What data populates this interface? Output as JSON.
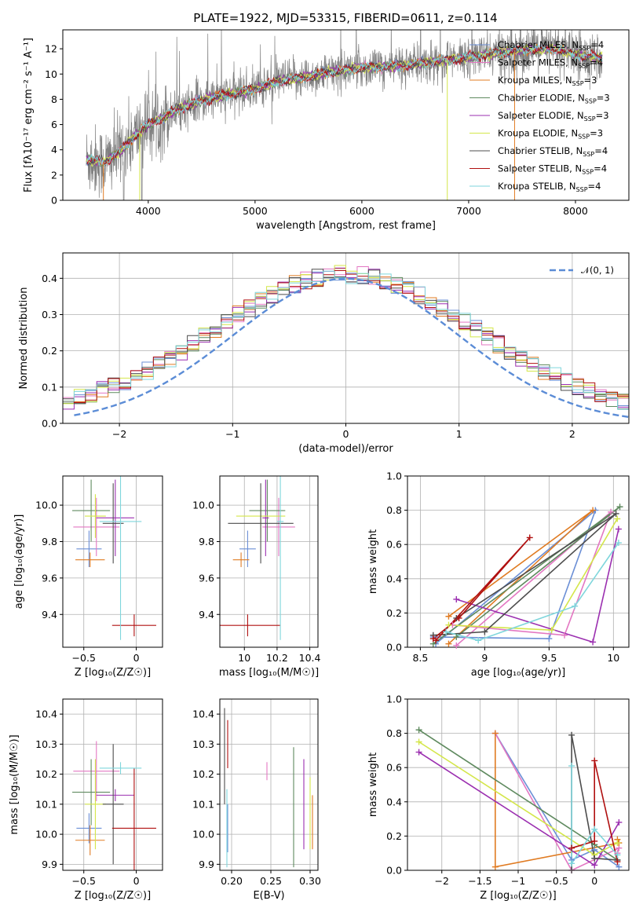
{
  "figure": {
    "title": "PLATE=1922, MJD=53315, FIBERID=0611, z=0.114"
  },
  "models": [
    {
      "name": "Chabrier MILES",
      "nssp": "4",
      "color": "#6b8fd6"
    },
    {
      "name": "Salpeter MILES",
      "nssp": "4",
      "color": "#e377c2"
    },
    {
      "name": "Kroupa MILES",
      "nssp": "3",
      "color": "#e07b22"
    },
    {
      "name": "Chabrier ELODIE",
      "nssp": "3",
      "color": "#5f8a5f"
    },
    {
      "name": "Salpeter ELODIE",
      "nssp": "3",
      "color": "#9b2fb0"
    },
    {
      "name": "Kroupa ELODIE",
      "nssp": "3",
      "color": "#d4e64a"
    },
    {
      "name": "Chabrier STELIB",
      "nssp": "4",
      "color": "#4d4d4d"
    },
    {
      "name": "Salpeter STELIB",
      "nssp": "4",
      "color": "#b01010"
    },
    {
      "name": "Kroupa STELIB",
      "nssp": "4",
      "color": "#7fd6dc"
    }
  ],
  "chart_data": [
    {
      "id": "spectrum",
      "type": "line",
      "xlabel": "wavelength [Angstrom, rest frame]",
      "ylabel": "Flux [fλ10⁻¹⁷ erg cm⁻² s⁻¹ A⁻¹]",
      "xlim": [
        3200,
        8500
      ],
      "ylim": [
        0,
        13.5
      ],
      "xticks": [
        4000,
        5000,
        6000,
        7000,
        8000
      ],
      "yticks": [
        0,
        2,
        4,
        6,
        8,
        10,
        12
      ],
      "grid": false,
      "legend_position": "right",
      "data_series": {
        "name": "data",
        "color": "#808080",
        "x_range": [
          3420,
          8250
        ]
      },
      "model_continuum": {
        "x": [
          3420,
          3600,
          3750,
          3900,
          4000,
          4100,
          4300,
          4500,
          4800,
          5000,
          5200,
          5500,
          5800,
          6000,
          6300,
          6600,
          6900,
          7200,
          7500,
          7800,
          8000,
          8250
        ],
        "y": [
          3.2,
          3.0,
          4.0,
          5.3,
          6.0,
          6.4,
          7.3,
          7.9,
          8.5,
          8.8,
          9.4,
          9.8,
          10.3,
          10.5,
          10.6,
          10.9,
          11.2,
          11.6,
          11.9,
          12.0,
          11.5,
          11.3
        ]
      }
    },
    {
      "id": "residuals",
      "type": "histogram",
      "xlabel": "(data-model)/error",
      "ylabel": "Normed distribution",
      "xlim": [
        -2.5,
        2.5
      ],
      "ylim": [
        0,
        0.47
      ],
      "xticks": [
        -2,
        -1,
        0,
        1,
        2
      ],
      "yticks": [
        0.0,
        0.1,
        0.2,
        0.3,
        0.4
      ],
      "grid": true,
      "legend": [
        "𝒩(0, 1)"
      ],
      "legend_position": "top-right",
      "bin_edges_range": [
        -2.5,
        2.5
      ],
      "n_bins": 50,
      "reference_curve": {
        "name": "𝒩(0, 1)",
        "color": "#5b8cd6",
        "style": "dashed",
        "mean": 0,
        "sigma": 1
      }
    },
    {
      "id": "age_vs_Z",
      "type": "errorbar",
      "xlabel": "Z [log₁₀(Z/Z☉)]",
      "ylabel": "age  [log₁₀(age/yr)]",
      "xlim": [
        -0.7,
        0.25
      ],
      "ylim": [
        9.22,
        10.16
      ],
      "xticks": [
        -0.5,
        0.0
      ],
      "yticks": [
        9.4,
        9.6,
        9.8,
        10.0
      ],
      "grid": true,
      "points": [
        {
          "x": -0.45,
          "xerr": 0.12,
          "y": 9.76,
          "yerr": 0.1
        },
        {
          "x": -0.38,
          "xerr": 0.22,
          "y": 9.88,
          "yerr": 0.16
        },
        {
          "x": -0.44,
          "xerr": 0.14,
          "y": 9.7,
          "yerr": 0.04
        },
        {
          "x": -0.43,
          "xerr": 0.18,
          "y": 9.97,
          "yerr": 0.17
        },
        {
          "x": -0.2,
          "xerr": 0.18,
          "y": 9.93,
          "yerr": 0.21
        },
        {
          "x": -0.39,
          "xerr": 0.1,
          "y": 9.94,
          "yerr": 0.12
        },
        {
          "x": -0.22,
          "xerr": 0.1,
          "y": 9.9,
          "yerr": 0.22
        },
        {
          "x": -0.02,
          "xerr": 0.21,
          "y": 9.34,
          "yerr": 0.06
        },
        {
          "x": -0.15,
          "xerr": 0.2,
          "y": 9.91,
          "yerr": 0.65
        }
      ]
    },
    {
      "id": "age_vs_mass",
      "type": "errorbar",
      "xlabel": "mass [log₁₀(M/M☉)]",
      "ylabel": "",
      "xlim": [
        9.85,
        10.45
      ],
      "ylim": [
        9.22,
        10.16
      ],
      "xticks": [
        10.0,
        10.2,
        10.4
      ],
      "yticks": [
        9.4,
        9.6,
        9.8,
        10.0
      ],
      "grid": true,
      "points": [
        {
          "x": 10.02,
          "xerr": 0.05,
          "y": 9.76,
          "yerr": 0.1
        },
        {
          "x": 10.21,
          "xerr": 0.1,
          "y": 9.88,
          "yerr": 0.16
        },
        {
          "x": 9.98,
          "xerr": 0.05,
          "y": 9.7,
          "yerr": 0.04
        },
        {
          "x": 10.14,
          "xerr": 0.11,
          "y": 9.97,
          "yerr": 0.17
        },
        {
          "x": 10.13,
          "xerr": 0.02,
          "y": 9.93,
          "yerr": 0.21
        },
        {
          "x": 10.1,
          "xerr": 0.15,
          "y": 9.94,
          "yerr": 0.12
        },
        {
          "x": 10.1,
          "xerr": 0.2,
          "y": 9.9,
          "yerr": 0.22
        },
        {
          "x": 10.02,
          "xerr": 0.2,
          "y": 9.34,
          "yerr": 0.06
        },
        {
          "x": 10.22,
          "xerr": 0.02,
          "y": 9.91,
          "yerr": 0.65
        }
      ]
    },
    {
      "id": "mass_weight_vs_age",
      "type": "line",
      "xlabel": "age  [log₁₀(age/yr)]",
      "ylabel": "mass weight",
      "xlim": [
        8.4,
        10.12
      ],
      "ylim": [
        0,
        1.0
      ],
      "xticks": [
        8.5,
        9.0,
        9.5,
        10.0
      ],
      "yticks": [
        0.0,
        0.2,
        0.4,
        0.6,
        0.8,
        1.0
      ],
      "grid": true,
      "series": [
        {
          "x": [
            8.6,
            9.5,
            9.86,
            8.62
          ],
          "y": [
            0.06,
            0.05,
            0.8,
            0.02
          ]
        },
        {
          "x": [
            8.75,
            9.62,
            9.98,
            8.78
          ],
          "y": [
            0.13,
            0.07,
            0.79,
            0.01
          ]
        },
        {
          "x": [
            8.72,
            9.84,
            8.72
          ],
          "y": [
            0.18,
            0.8,
            0.02
          ]
        },
        {
          "x": [
            8.6,
            10.05,
            8.78
          ],
          "y": [
            0.02,
            0.82,
            0.06
          ]
        },
        {
          "x": [
            8.78,
            9.84,
            10.04
          ],
          "y": [
            0.28,
            0.03,
            0.69
          ]
        },
        {
          "x": [
            8.72,
            9.52,
            10.03
          ],
          "y": [
            0.13,
            0.1,
            0.75
          ]
        },
        {
          "x": [
            8.6,
            9.0,
            10.02,
            8.78
          ],
          "y": [
            0.07,
            0.09,
            0.78,
            0.17
          ]
        },
        {
          "x": [
            8.6,
            8.8,
            9.35,
            8.62
          ],
          "y": [
            0.05,
            0.17,
            0.64,
            0.04
          ]
        },
        {
          "x": [
            8.7,
            8.95,
            9.7,
            10.04
          ],
          "y": [
            0.09,
            0.04,
            0.24,
            0.61
          ]
        }
      ]
    },
    {
      "id": "mass_vs_Z",
      "type": "errorbar",
      "xlabel": "Z [log₁₀(Z/Z☉)]",
      "ylabel": "mass [log₁₀(M/M☉)]",
      "xlim": [
        -0.7,
        0.25
      ],
      "ylim": [
        9.88,
        10.45
      ],
      "xticks": [
        -0.5,
        0.0
      ],
      "yticks": [
        9.9,
        10.0,
        10.1,
        10.2,
        10.3,
        10.4
      ],
      "grid": true,
      "points": [
        {
          "x": -0.45,
          "xerr": 0.12,
          "y": 10.02,
          "yerr": 0.05
        },
        {
          "x": -0.38,
          "xerr": 0.22,
          "y": 10.21,
          "yerr": 0.1
        },
        {
          "x": -0.44,
          "xerr": 0.14,
          "y": 9.98,
          "yerr": 0.05
        },
        {
          "x": -0.43,
          "xerr": 0.18,
          "y": 10.14,
          "yerr": 0.11
        },
        {
          "x": -0.2,
          "xerr": 0.18,
          "y": 10.13,
          "yerr": 0.02
        },
        {
          "x": -0.39,
          "xerr": 0.1,
          "y": 10.1,
          "yerr": 0.15
        },
        {
          "x": -0.22,
          "xerr": 0.1,
          "y": 10.1,
          "yerr": 0.2
        },
        {
          "x": -0.02,
          "xerr": 0.21,
          "y": 10.02,
          "yerr": 0.2
        },
        {
          "x": -0.15,
          "xerr": 0.2,
          "y": 10.22,
          "yerr": 0.02
        }
      ]
    },
    {
      "id": "mass_vs_EBV",
      "type": "errorbar",
      "xlabel": "E(B-V)",
      "ylabel": "",
      "xlim": [
        0.185,
        0.31
      ],
      "ylim": [
        9.88,
        10.45
      ],
      "xticks": [
        0.2,
        0.25,
        0.3
      ],
      "xtick_labels": [
        "0.20",
        "0.25",
        "0.30"
      ],
      "yticks": [
        9.9,
        10.0,
        10.1,
        10.2,
        10.3,
        10.4
      ],
      "grid": true,
      "points": [
        {
          "x": 0.195,
          "y": 10.02,
          "yerr": 0.08
        },
        {
          "x": 0.245,
          "y": 10.21,
          "yerr": 0.03
        },
        {
          "x": 0.303,
          "y": 10.04,
          "yerr": 0.09
        },
        {
          "x": 0.279,
          "y": 10.09,
          "yerr": 0.2
        },
        {
          "x": 0.292,
          "y": 10.1,
          "yerr": 0.15
        },
        {
          "x": 0.3,
          "y": 10.07,
          "yerr": 0.12
        },
        {
          "x": 0.191,
          "y": 10.26,
          "yerr": 0.16
        },
        {
          "x": 0.195,
          "y": 10.3,
          "yerr": 0.08
        },
        {
          "x": 0.194,
          "y": 10.02,
          "yerr": 0.13
        }
      ]
    },
    {
      "id": "mass_weight_vs_Z",
      "type": "line",
      "xlabel": "Z [log₁₀(Z/Z☉)]",
      "ylabel": "mass weight",
      "xlim": [
        -2.45,
        0.45
      ],
      "ylim": [
        0,
        1.0
      ],
      "xticks": [
        -2.0,
        -1.5,
        -1.0,
        -0.5,
        0.0
      ],
      "yticks": [
        0.0,
        0.2,
        0.4,
        0.6,
        0.8,
        1.0
      ],
      "grid": true,
      "series": [
        {
          "x": [
            -1.3,
            -0.3,
            0.0,
            0.32
          ],
          "y": [
            0.8,
            0.06,
            0.12,
            0.02
          ]
        },
        {
          "x": [
            -1.3,
            -0.3,
            0.32,
            0.3
          ],
          "y": [
            0.8,
            0.0,
            0.13,
            0.1
          ]
        },
        {
          "x": [
            -1.3,
            -1.3,
            0.32,
            0.3
          ],
          "y": [
            0.8,
            0.02,
            0.16,
            0.18
          ]
        },
        {
          "x": [
            -2.3,
            0.0,
            0.3
          ],
          "y": [
            0.82,
            0.15,
            0.06
          ]
        },
        {
          "x": [
            -2.3,
            0.0,
            0.32
          ],
          "y": [
            0.69,
            0.03,
            0.28
          ]
        },
        {
          "x": [
            -2.3,
            0.0,
            0.3
          ],
          "y": [
            0.75,
            0.09,
            0.16
          ]
        },
        {
          "x": [
            -0.3,
            -0.3,
            0.0,
            0.3
          ],
          "y": [
            0.0,
            0.79,
            0.07,
            0.06
          ]
        },
        {
          "x": [
            -0.3,
            0.0,
            0.0,
            0.3
          ],
          "y": [
            0.13,
            0.17,
            0.64,
            0.05
          ]
        },
        {
          "x": [
            -0.3,
            -0.3,
            0.0,
            0.3
          ],
          "y": [
            0.61,
            0.04,
            0.24,
            0.09
          ]
        }
      ]
    }
  ]
}
